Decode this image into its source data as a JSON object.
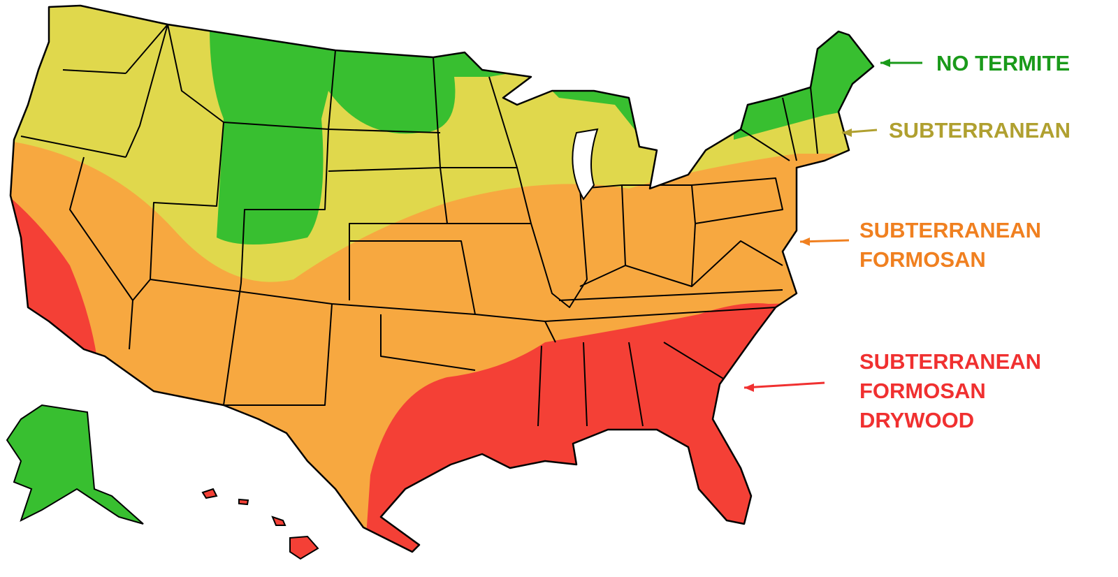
{
  "legend": [
    {
      "lines": [
        "NO TERMITE"
      ]
    },
    {
      "lines": [
        "SUBTERRANEAN"
      ]
    },
    {
      "lines": [
        "SUBTERRANEAN",
        "FORMOSAN"
      ]
    },
    {
      "lines": [
        "SUBTERRANEAN",
        "FORMOSAN",
        "DRYWOOD"
      ]
    }
  ]
}
